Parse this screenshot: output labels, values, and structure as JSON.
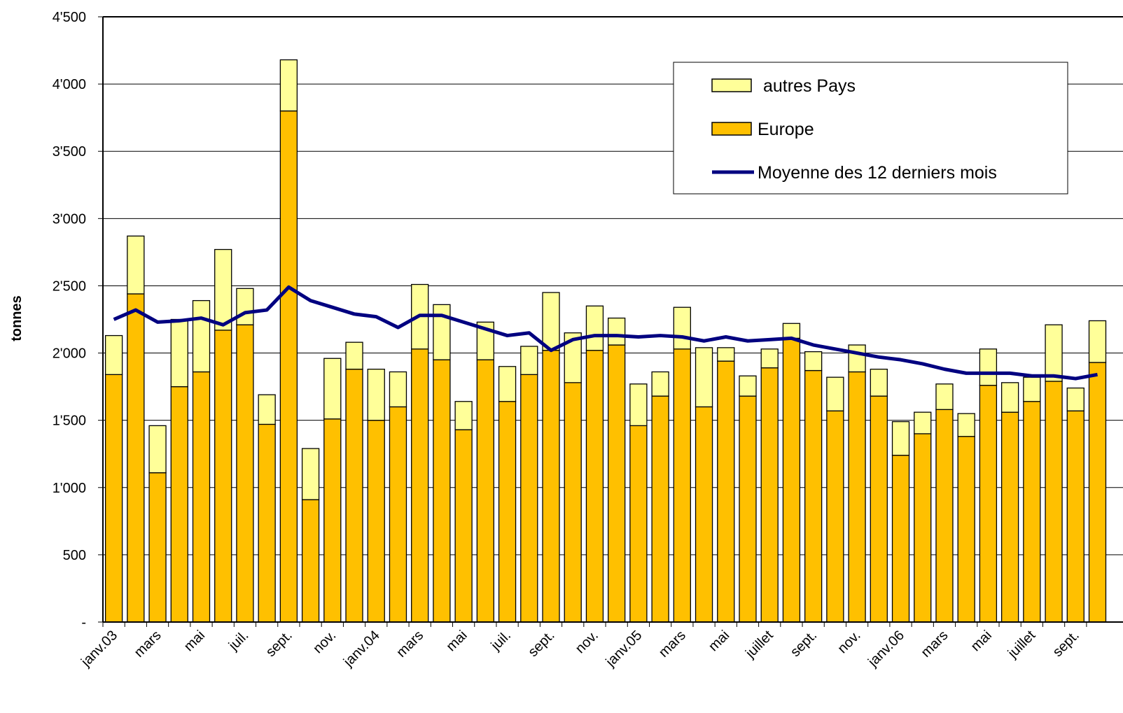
{
  "chart_data": {
    "type": "bar",
    "y_label": "tonnes",
    "categories": [
      "janv.03",
      null,
      "mars",
      null,
      "mai",
      null,
      "juil.",
      null,
      "sept.",
      null,
      "nov.",
      null,
      "janv.04",
      null,
      "mars",
      null,
      "mai",
      null,
      "juil.",
      null,
      "sept.",
      null,
      "nov.",
      null,
      "janv.05",
      null,
      "mars",
      null,
      "mai",
      null,
      "juillet",
      null,
      "sept.",
      null,
      "nov.",
      null,
      "janv.06",
      null,
      "mars",
      null,
      "mai",
      null,
      "juillet",
      null,
      "sept.",
      null
    ],
    "series": [
      {
        "name": "autres Pays",
        "type": "bar",
        "color": "#FFFF99",
        "values": [
          290,
          430,
          350,
          500,
          530,
          600,
          270,
          220,
          380,
          380,
          450,
          200,
          380,
          260,
          480,
          410,
          210,
          280,
          260,
          210,
          430,
          370,
          330,
          200,
          310,
          180,
          310,
          440,
          100,
          150,
          140,
          110,
          140,
          250,
          200,
          200,
          250,
          160,
          190,
          170,
          270,
          220,
          180,
          420,
          170,
          310
        ]
      },
      {
        "name": "Europe",
        "type": "bar",
        "color": "#FFC000",
        "values": [
          1840,
          2440,
          1110,
          1750,
          1860,
          2170,
          2210,
          1470,
          3800,
          910,
          1510,
          1880,
          1500,
          1600,
          2030,
          1950,
          1430,
          1950,
          1640,
          1840,
          2020,
          1780,
          2020,
          2060,
          1460,
          1680,
          2030,
          1600,
          1940,
          1680,
          1890,
          2110,
          1870,
          1570,
          1860,
          1680,
          1240,
          1400,
          1580,
          1380,
          1760,
          1560,
          1640,
          1790,
          1570,
          1930
        ]
      },
      {
        "name": "Moyenne des 12 derniers mois",
        "type": "line",
        "color": "#000080",
        "values": [
          2250,
          2320,
          2230,
          2240,
          2260,
          2210,
          2300,
          2320,
          2490,
          2390,
          2340,
          2290,
          2270,
          2190,
          2280,
          2280,
          2230,
          2180,
          2130,
          2150,
          2020,
          2100,
          2130,
          2130,
          2120,
          2130,
          2120,
          2090,
          2120,
          2090,
          2100,
          2110,
          2060,
          2030,
          2000,
          1970,
          1950,
          1920,
          1880,
          1850,
          1850,
          1850,
          1830,
          1830,
          1810,
          1840
        ]
      }
    ],
    "ylim": [
      0,
      4500
    ],
    "yticks": [
      {
        "value": 0,
        "label": "-"
      },
      500,
      {
        "value": 1000,
        "label": "1'000"
      },
      {
        "value": 1500,
        "label": "1'500"
      },
      {
        "value": 2000,
        "label": "2'000"
      },
      {
        "value": 2500,
        "label": "2'500"
      },
      {
        "value": 3000,
        "label": "3'000"
      },
      {
        "value": 3500,
        "label": "3'500"
      },
      {
        "value": 4000,
        "label": "4'000"
      },
      {
        "value": 4500,
        "label": "4'500"
      }
    ],
    "grid": true,
    "legend": "top-right"
  }
}
